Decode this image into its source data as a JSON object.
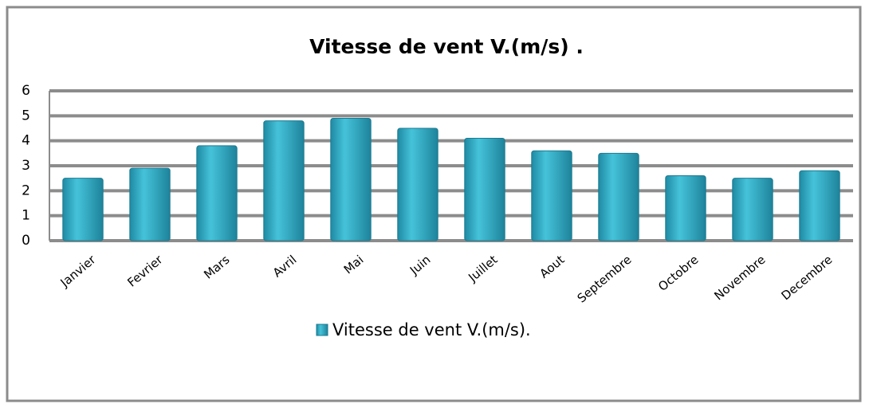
{
  "chart_data": {
    "type": "bar",
    "title": "Vitesse de vent V.(m/s) .",
    "categories": [
      "Janvier",
      "Fevrier",
      "Mars",
      "Avril",
      "Mai",
      "Juin",
      "Juillet",
      "Aout",
      "Septembre",
      "Octobre",
      "Novembre",
      "Decembre"
    ],
    "series": [
      {
        "name": "Vitesse de vent V.(m/s).",
        "color": "#35b3cc",
        "values": [
          2.5,
          2.9,
          3.8,
          4.8,
          4.9,
          4.5,
          4.1,
          3.6,
          3.5,
          2.6,
          2.5,
          2.8
        ]
      }
    ],
    "ylim": [
      0,
      6
    ],
    "yticks": [
      0,
      1,
      2,
      3,
      4,
      5,
      6
    ],
    "grid": true,
    "legend": "bottom"
  }
}
